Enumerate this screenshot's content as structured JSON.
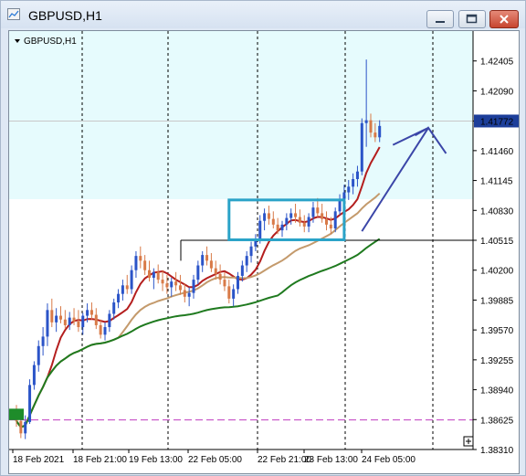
{
  "window": {
    "title": "GBPUSD,H1"
  },
  "chart_data": {
    "type": "candlestick",
    "symbol_label": "GBPUSD,H1",
    "current_price": "1.41772",
    "y_ticks": [
      "1.42405",
      "1.42090",
      "1.41772",
      "1.41460",
      "1.41145",
      "1.40830",
      "1.40515",
      "1.40200",
      "1.39885",
      "1.39570",
      "1.39255",
      "1.38940",
      "1.38625",
      "1.38310"
    ],
    "ylim": [
      1.3831,
      1.4272
    ],
    "x_ticks": [
      "18 Feb 2021",
      "18 Feb 21:00",
      "19 Feb 13:00",
      "22 Feb 05:00",
      "22 Feb 21:00",
      "23 Feb 13:00",
      "24 Feb 05:00"
    ],
    "colors": {
      "bull": "#2b54c8",
      "bear": "#d87a48",
      "ma_fast": "#b41e1e",
      "ma_mid": "#c49a6c",
      "ma_slow": "#1f7a1f",
      "zone": "#e6fbfd",
      "box": "#2aa3c8",
      "arrow": "#3b46a8",
      "dashed_level": "#c03cc0"
    },
    "series": [
      {
        "values": [
          [
            1.3871,
            1.3878,
            1.3855,
            1.3861
          ],
          [
            1.3861,
            1.3866,
            1.3843,
            1.3848
          ],
          [
            1.3848,
            1.3867,
            1.3842,
            1.386
          ],
          [
            1.386,
            1.3905,
            1.3858,
            1.3899
          ],
          [
            1.3899,
            1.3924,
            1.3894,
            1.392
          ],
          [
            1.392,
            1.3946,
            1.3913,
            1.394
          ],
          [
            1.394,
            1.396,
            1.393,
            1.395
          ],
          [
            1.395,
            1.3985,
            1.394,
            1.3978
          ],
          [
            1.3978,
            1.399,
            1.396,
            1.3965
          ],
          [
            1.3965,
            1.398,
            1.3955,
            1.3972
          ],
          [
            1.3972,
            1.3982,
            1.3964,
            1.3968
          ],
          [
            1.3968,
            1.3978,
            1.3958,
            1.3962
          ],
          [
            1.3962,
            1.3976,
            1.3957,
            1.397
          ],
          [
            1.397,
            1.398,
            1.3962,
            1.3966
          ],
          [
            1.3966,
            1.3978,
            1.3955,
            1.396
          ],
          [
            1.396,
            1.3975,
            1.3952,
            1.3972
          ],
          [
            1.3972,
            1.3985,
            1.3965,
            1.3978
          ],
          [
            1.3978,
            1.3986,
            1.3968,
            1.3973
          ],
          [
            1.3973,
            1.398,
            1.3958,
            1.3962
          ],
          [
            1.3962,
            1.3968,
            1.3948,
            1.3952
          ],
          [
            1.3952,
            1.3965,
            1.3946,
            1.396
          ],
          [
            1.396,
            1.3978,
            1.3955,
            1.3974
          ],
          [
            1.3974,
            1.399,
            1.3968,
            1.3986
          ],
          [
            1.3986,
            1.4,
            1.398,
            1.3995
          ],
          [
            1.3995,
            1.401,
            1.3988,
            1.4004
          ],
          [
            1.4004,
            1.4015,
            1.3995,
            1.4
          ],
          [
            1.4,
            1.4025,
            1.3995,
            1.402
          ],
          [
            1.402,
            1.404,
            1.4012,
            1.4035
          ],
          [
            1.4035,
            1.4045,
            1.4022,
            1.403
          ],
          [
            1.403,
            1.4036,
            1.4015,
            1.402
          ],
          [
            1.402,
            1.403,
            1.4008,
            1.4012
          ],
          [
            1.4012,
            1.4022,
            1.4,
            1.4018
          ],
          [
            1.4018,
            1.4026,
            1.4006,
            1.401
          ],
          [
            1.401,
            1.402,
            1.3998,
            1.4006
          ],
          [
            1.4006,
            1.4015,
            1.3995,
            1.4002
          ],
          [
            1.4002,
            1.4012,
            1.3992,
            1.4008
          ],
          [
            1.4008,
            1.4018,
            1.3998,
            1.4004
          ],
          [
            1.4004,
            1.4015,
            1.3994,
            1.3999
          ],
          [
            1.3999,
            1.4006,
            1.3986,
            1.3992
          ],
          [
            1.3992,
            1.4002,
            1.3982,
            1.3996
          ],
          [
            1.3996,
            1.4015,
            1.399,
            1.401
          ],
          [
            1.401,
            1.403,
            1.4005,
            1.4025
          ],
          [
            1.4025,
            1.404,
            1.4018,
            1.4036
          ],
          [
            1.4036,
            1.4045,
            1.4025,
            1.403
          ],
          [
            1.403,
            1.4038,
            1.4018,
            1.4022
          ],
          [
            1.4022,
            1.403,
            1.401,
            1.4016
          ],
          [
            1.4016,
            1.4026,
            1.4005,
            1.401
          ],
          [
            1.401,
            1.4018,
            1.3998,
            1.4003
          ],
          [
            1.4003,
            1.401,
            1.3985,
            1.399
          ],
          [
            1.399,
            1.4005,
            1.3982,
            1.4
          ],
          [
            1.4,
            1.4018,
            1.3995,
            1.4014
          ],
          [
            1.4014,
            1.403,
            1.4008,
            1.4025
          ],
          [
            1.4025,
            1.404,
            1.4018,
            1.4035
          ],
          [
            1.4035,
            1.405,
            1.4028,
            1.4045
          ],
          [
            1.4045,
            1.4058,
            1.404,
            1.4052
          ],
          [
            1.4052,
            1.4078,
            1.4048,
            1.4072
          ],
          [
            1.4072,
            1.4085,
            1.4062,
            1.408
          ],
          [
            1.408,
            1.4088,
            1.4068,
            1.4074
          ],
          [
            1.4074,
            1.4082,
            1.4064,
            1.4068
          ],
          [
            1.4068,
            1.4075,
            1.4058,
            1.4062
          ],
          [
            1.4062,
            1.4072,
            1.4055,
            1.4068
          ],
          [
            1.4068,
            1.408,
            1.4062,
            1.4075
          ],
          [
            1.4075,
            1.4085,
            1.4068,
            1.408
          ],
          [
            1.408,
            1.409,
            1.407,
            1.4076
          ],
          [
            1.4076,
            1.4084,
            1.4066,
            1.407
          ],
          [
            1.407,
            1.4078,
            1.406,
            1.4066
          ],
          [
            1.4066,
            1.408,
            1.406,
            1.4076
          ],
          [
            1.4076,
            1.4092,
            1.407,
            1.4086
          ],
          [
            1.4086,
            1.4096,
            1.4076,
            1.408
          ],
          [
            1.408,
            1.409,
            1.407,
            1.4074
          ],
          [
            1.4074,
            1.4082,
            1.4062,
            1.4068
          ],
          [
            1.4068,
            1.4076,
            1.4058,
            1.4064
          ],
          [
            1.4064,
            1.4086,
            1.406,
            1.4082
          ],
          [
            1.4082,
            1.41,
            1.4078,
            1.4095
          ],
          [
            1.4095,
            1.411,
            1.4085,
            1.4102
          ],
          [
            1.4102,
            1.4115,
            1.4094,
            1.4108
          ],
          [
            1.4108,
            1.4122,
            1.41,
            1.4116
          ],
          [
            1.4116,
            1.413,
            1.4108,
            1.4124
          ],
          [
            1.4124,
            1.418,
            1.412,
            1.4175
          ],
          [
            1.4175,
            1.4242,
            1.415,
            1.4178
          ],
          [
            1.4178,
            1.4185,
            1.416,
            1.4165
          ],
          [
            1.4165,
            1.4175,
            1.4155,
            1.416
          ],
          [
            1.416,
            1.4178,
            1.4155,
            1.4172
          ]
        ]
      }
    ]
  }
}
